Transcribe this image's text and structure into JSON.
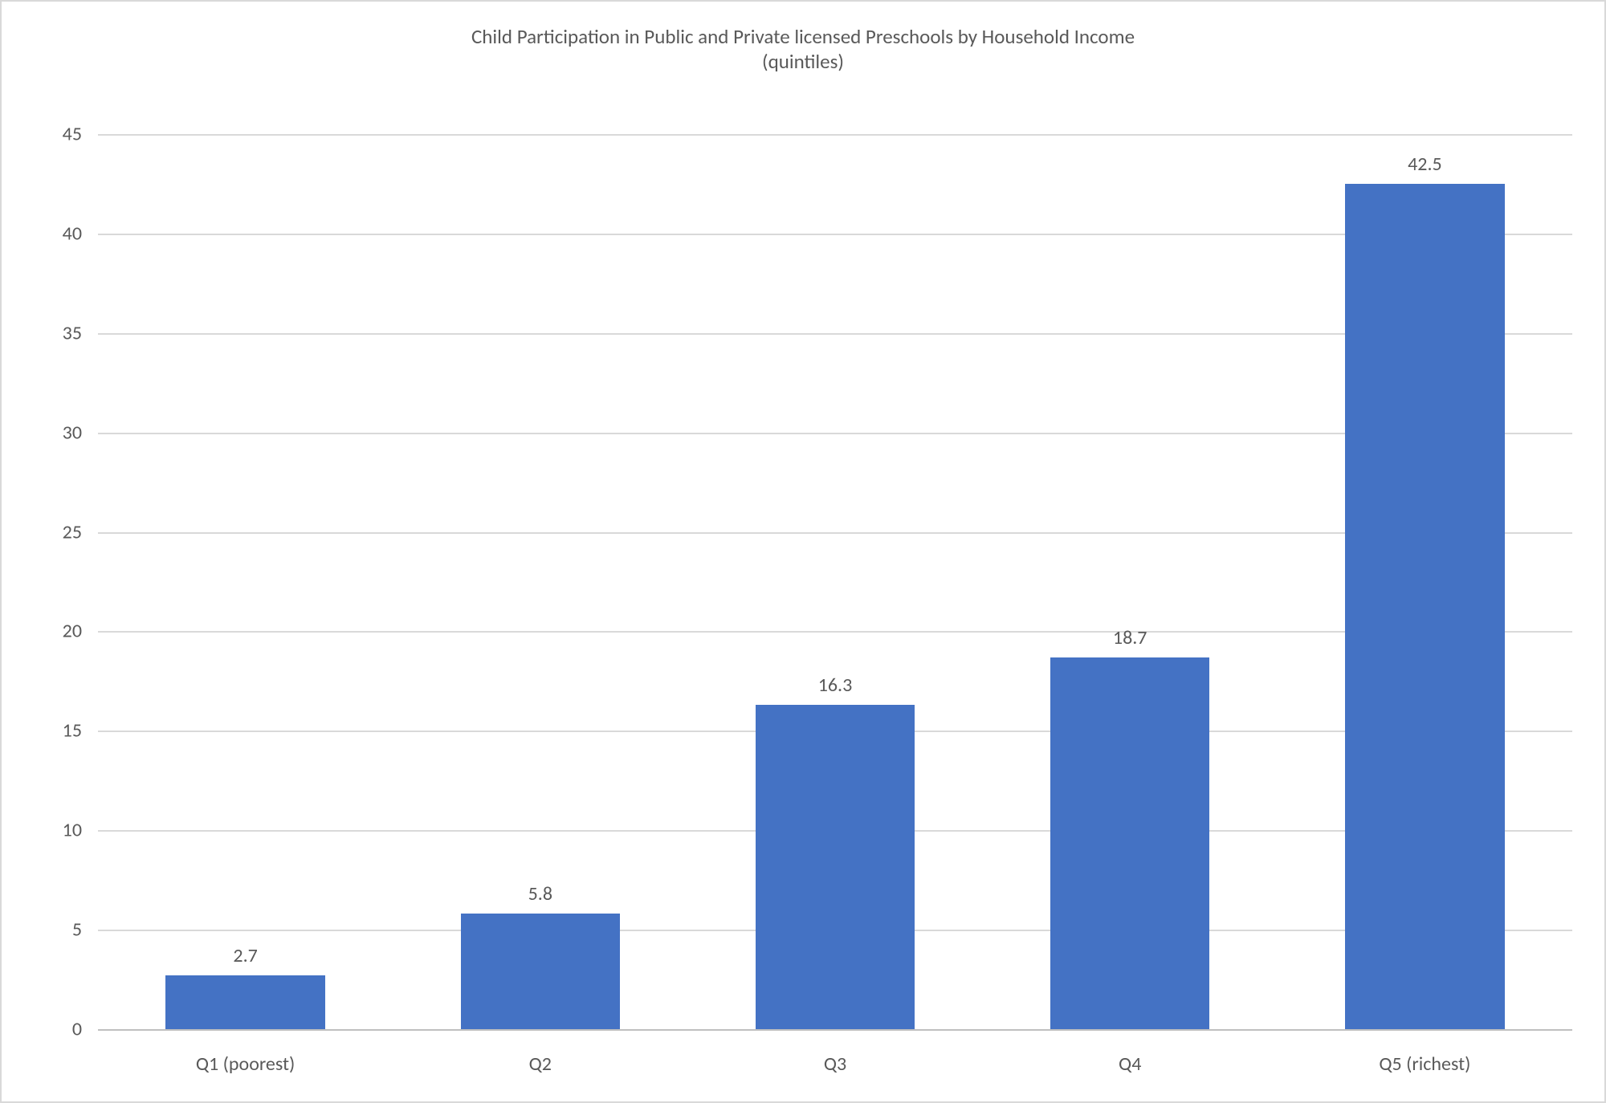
{
  "chart": {
    "type": "bar",
    "title_line1": "Child Participation in Public and Private licensed Preschools by Household Income",
    "title_line2": "(quintiles)",
    "title_fontsize": 25,
    "title_color": "#595959",
    "categories": [
      "Q1 (poorest)",
      "Q2",
      "Q3",
      "Q4",
      "Q5 (richest)"
    ],
    "values": [
      2.7,
      5.8,
      16.3,
      18.7,
      42.5
    ],
    "value_labels": [
      "2.7",
      "5.8",
      "16.3",
      "18.7",
      "42.5"
    ],
    "bar_color": "#4472c4",
    "bar_width": 0.54,
    "ylim": [
      0,
      45
    ],
    "ytick_step": 5,
    "y_ticks": [
      "0",
      "5",
      "10",
      "15",
      "20",
      "25",
      "30",
      "35",
      "40",
      "45"
    ],
    "axis_label_fontsize": 24,
    "axis_label_color": "#595959",
    "data_label_fontsize": 24,
    "data_label_color": "#595959",
    "grid_color": "#d9d9d9",
    "baseline_color": "#bfbfbf",
    "background_color": "#ffffff",
    "border_color": "#d9d9d9"
  }
}
